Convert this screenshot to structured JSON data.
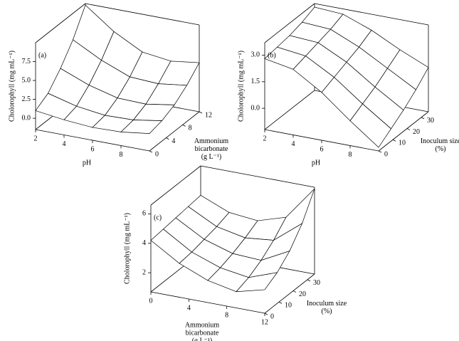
{
  "chart_data": [
    {
      "type": "surface",
      "panel_label": "(a)",
      "x_label": [
        "pH"
      ],
      "y_label": [
        "Ammonium",
        "bicarbonate",
        "(g L⁻¹)"
      ],
      "z_label": "Cholorophyll (mg mL⁻¹)",
      "x": [
        2,
        4,
        6,
        8,
        10
      ],
      "y": [
        0,
        3,
        6,
        9,
        12
      ],
      "z": [
        [
          1.0,
          0.5,
          0.2,
          0.3,
          0.8
        ],
        [
          2.0,
          1.0,
          0.5,
          0.6,
          1.2
        ],
        [
          4.0,
          2.5,
          1.5,
          1.4,
          2.0
        ],
        [
          6.5,
          4.5,
          3.0,
          2.8,
          3.3
        ],
        [
          9.8,
          7.0,
          5.0,
          4.5,
          5.0
        ]
      ],
      "xlim": [
        2,
        10
      ],
      "ylim": [
        0,
        12
      ],
      "zlim": [
        -1.5,
        10
      ],
      "xticks": [
        2,
        4,
        6,
        8
      ],
      "yticks": [
        0,
        4,
        8,
        12
      ],
      "zticks": [
        {
          "value": 0,
          "label": "0.0"
        },
        {
          "value": 2.5,
          "label": "2.5"
        },
        {
          "value": 5,
          "label": "5.0"
        },
        {
          "value": 7.5,
          "label": "7.5"
        }
      ]
    },
    {
      "type": "surface",
      "panel_label": "(b)",
      "x_label": [
        "pH"
      ],
      "y_label": [
        "Inoculum size",
        "(%)"
      ],
      "z_label": "Cholorophyll (mg mL⁻¹)",
      "x": [
        2,
        4,
        6,
        8,
        10
      ],
      "y": [
        0,
        8.75,
        17.5,
        26.25,
        35
      ],
      "z": [
        [
          2.8,
          2.5,
          1.5,
          0.2,
          -1.0
        ],
        [
          2.9,
          2.7,
          1.8,
          0.6,
          -0.5
        ],
        [
          3.0,
          2.9,
          2.1,
          1.0,
          0.0
        ],
        [
          3.2,
          3.1,
          2.4,
          1.5,
          0.6
        ],
        [
          3.5,
          3.4,
          2.8,
          2.0,
          1.3
        ]
      ],
      "xlim": [
        2,
        10
      ],
      "ylim": [
        0,
        35
      ],
      "zlim": [
        -1.2,
        3.7
      ],
      "xticks": [
        2,
        4,
        6,
        8
      ],
      "yticks": [
        0,
        10,
        20,
        30
      ],
      "zticks": [
        {
          "value": 0,
          "label": "0.0"
        },
        {
          "value": 1.5,
          "label": "1.5"
        },
        {
          "value": 3,
          "label": "3.0"
        }
      ]
    },
    {
      "type": "surface",
      "panel_label": "(c)",
      "x_label": [
        "Ammonium",
        "bicarbonate",
        "(g L⁻¹)"
      ],
      "y_label": [
        "Inoculum size",
        "(%)"
      ],
      "z_label": "Cholorophyll (mg mL⁻¹)",
      "x": [
        0,
        3,
        6,
        9,
        12
      ],
      "y": [
        0,
        8.75,
        17.5,
        26.25,
        35
      ],
      "z": [
        [
          4.2,
          3.0,
          2.2,
          1.8,
          2.3
        ],
        [
          4.3,
          3.1,
          2.4,
          2.1,
          2.8
        ],
        [
          4.4,
          3.3,
          2.7,
          2.6,
          3.6
        ],
        [
          4.5,
          3.5,
          3.1,
          3.3,
          4.8
        ],
        [
          4.6,
          3.8,
          3.6,
          4.2,
          6.5
        ]
      ],
      "xlim": [
        0,
        12
      ],
      "ylim": [
        0,
        35
      ],
      "zlim": [
        0.7,
        6.6
      ],
      "xticks": [
        0,
        4,
        8,
        12
      ],
      "yticks": [
        0,
        10,
        20,
        30
      ],
      "zticks": [
        2,
        4,
        6
      ]
    }
  ]
}
